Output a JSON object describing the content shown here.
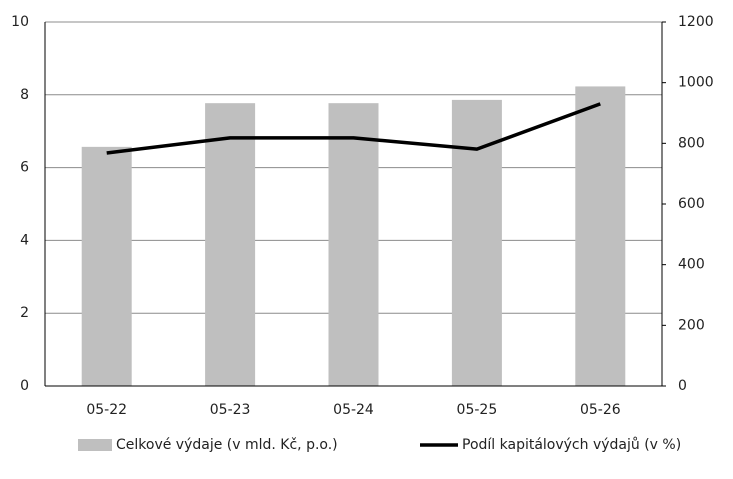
{
  "chart_data": {
    "type": "bar-line",
    "categories": [
      "05-22",
      "05-23",
      "05-24",
      "05-25",
      "05-26"
    ],
    "series": [
      {
        "name": "Celkové výdaje (v mld. Kč, p.o.)",
        "color": "#bfbfbf",
        "type": "bar",
        "values": [
          6.57,
          7.77,
          7.77,
          7.86,
          8.23
        ]
      },
      {
        "name": "Podíl kapitálových výdajů (v %)",
        "color": "#000000",
        "type": "line",
        "axis": "y2",
        "values": [
          768,
          818,
          818,
          781,
          930
        ]
      }
    ],
    "ylim": [
      0,
      10
    ],
    "yticks": [
      0,
      2,
      4,
      6,
      8,
      10
    ],
    "y2lim": [
      0,
      1200
    ],
    "y2ticks": [
      0,
      200,
      400,
      600,
      800,
      1000,
      1200
    ],
    "grid": true,
    "legend": "bottom"
  }
}
